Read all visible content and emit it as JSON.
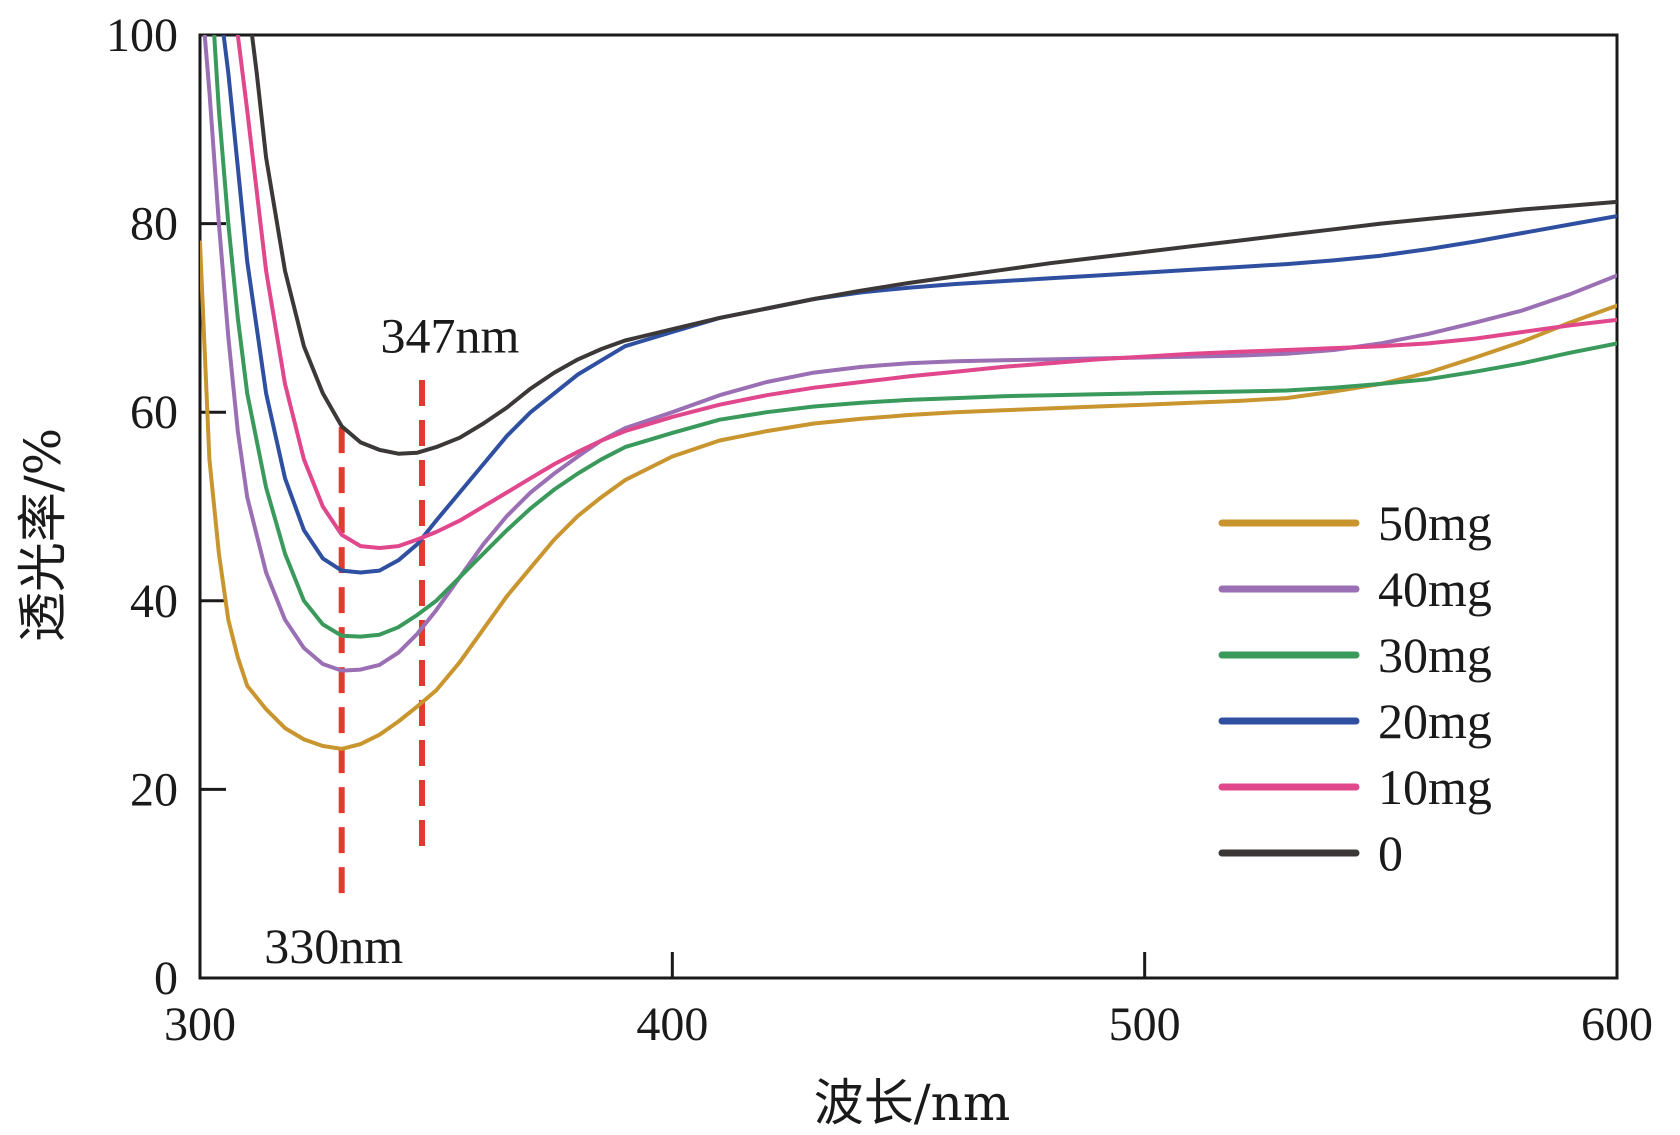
{
  "chart_data": {
    "type": "line",
    "title": "",
    "xlabel": "波长/nm",
    "ylabel": "透光率/%",
    "xlim": [
      300,
      600
    ],
    "ylim": [
      0,
      100
    ],
    "x_ticks": [
      300,
      400,
      500,
      600
    ],
    "y_ticks": [
      0,
      20,
      40,
      60,
      80,
      100
    ],
    "x_tick_labels": [
      "300",
      "400",
      "500",
      "600"
    ],
    "y_tick_labels": [
      "0",
      "20",
      "40",
      "60",
      "80",
      "100"
    ],
    "grid": false,
    "legend_position": "bottom-right",
    "series": [
      {
        "name": "50mg",
        "color": "#C9952E",
        "points": [
          [
            300,
            78
          ],
          [
            302,
            55
          ],
          [
            304,
            45
          ],
          [
            306,
            38
          ],
          [
            308,
            34
          ],
          [
            310,
            31
          ],
          [
            314,
            28.5
          ],
          [
            318,
            26.5
          ],
          [
            322,
            25.3
          ],
          [
            326,
            24.6
          ],
          [
            330,
            24.3
          ],
          [
            334,
            24.8
          ],
          [
            338,
            25.8
          ],
          [
            342,
            27.2
          ],
          [
            346,
            28.8
          ],
          [
            350,
            30.5
          ],
          [
            355,
            33.5
          ],
          [
            360,
            37
          ],
          [
            365,
            40.5
          ],
          [
            370,
            43.5
          ],
          [
            375,
            46.5
          ],
          [
            380,
            49
          ],
          [
            385,
            51
          ],
          [
            390,
            52.8
          ],
          [
            400,
            55.3
          ],
          [
            410,
            57
          ],
          [
            420,
            58
          ],
          [
            430,
            58.8
          ],
          [
            440,
            59.3
          ],
          [
            450,
            59.7
          ],
          [
            460,
            60
          ],
          [
            470,
            60.2
          ],
          [
            480,
            60.4
          ],
          [
            490,
            60.6
          ],
          [
            500,
            60.8
          ],
          [
            510,
            61
          ],
          [
            520,
            61.2
          ],
          [
            530,
            61.5
          ],
          [
            540,
            62.2
          ],
          [
            550,
            63
          ],
          [
            560,
            64.2
          ],
          [
            570,
            65.8
          ],
          [
            580,
            67.5
          ],
          [
            590,
            69.5
          ],
          [
            600,
            71.3
          ]
        ]
      },
      {
        "name": "40mg",
        "color": "#9A6FB3",
        "points": [
          [
            301,
            100
          ],
          [
            302,
            94
          ],
          [
            304,
            80
          ],
          [
            306,
            68
          ],
          [
            308,
            58
          ],
          [
            310,
            51
          ],
          [
            314,
            43
          ],
          [
            318,
            38
          ],
          [
            322,
            35
          ],
          [
            326,
            33.3
          ],
          [
            330,
            32.6
          ],
          [
            334,
            32.7
          ],
          [
            338,
            33.2
          ],
          [
            342,
            34.5
          ],
          [
            346,
            36.5
          ],
          [
            350,
            39
          ],
          [
            355,
            42.5
          ],
          [
            360,
            46
          ],
          [
            365,
            49
          ],
          [
            370,
            51.5
          ],
          [
            375,
            53.5
          ],
          [
            380,
            55.3
          ],
          [
            385,
            57
          ],
          [
            390,
            58.3
          ],
          [
            400,
            60
          ],
          [
            410,
            61.8
          ],
          [
            420,
            63.2
          ],
          [
            430,
            64.2
          ],
          [
            440,
            64.8
          ],
          [
            450,
            65.2
          ],
          [
            460,
            65.4
          ],
          [
            470,
            65.5
          ],
          [
            480,
            65.6
          ],
          [
            490,
            65.7
          ],
          [
            500,
            65.8
          ],
          [
            510,
            65.9
          ],
          [
            520,
            66
          ],
          [
            530,
            66.2
          ],
          [
            540,
            66.6
          ],
          [
            550,
            67.3
          ],
          [
            560,
            68.3
          ],
          [
            570,
            69.5
          ],
          [
            580,
            70.8
          ],
          [
            590,
            72.5
          ],
          [
            600,
            74.5
          ]
        ]
      },
      {
        "name": "30mg",
        "color": "#3A9A5C",
        "points": [
          [
            303,
            100
          ],
          [
            304,
            92
          ],
          [
            306,
            80
          ],
          [
            308,
            70
          ],
          [
            310,
            62
          ],
          [
            314,
            52
          ],
          [
            318,
            45
          ],
          [
            322,
            40
          ],
          [
            326,
            37.5
          ],
          [
            330,
            36.3
          ],
          [
            334,
            36.2
          ],
          [
            338,
            36.4
          ],
          [
            342,
            37.2
          ],
          [
            346,
            38.5
          ],
          [
            350,
            40
          ],
          [
            355,
            42.5
          ],
          [
            360,
            45
          ],
          [
            365,
            47.5
          ],
          [
            370,
            49.8
          ],
          [
            375,
            51.8
          ],
          [
            380,
            53.5
          ],
          [
            385,
            55
          ],
          [
            390,
            56.3
          ],
          [
            400,
            57.8
          ],
          [
            410,
            59.2
          ],
          [
            420,
            60
          ],
          [
            430,
            60.6
          ],
          [
            440,
            61
          ],
          [
            450,
            61.3
          ],
          [
            460,
            61.5
          ],
          [
            470,
            61.7
          ],
          [
            480,
            61.8
          ],
          [
            490,
            61.9
          ],
          [
            500,
            62
          ],
          [
            510,
            62.1
          ],
          [
            520,
            62.2
          ],
          [
            530,
            62.3
          ],
          [
            540,
            62.6
          ],
          [
            550,
            63
          ],
          [
            560,
            63.5
          ],
          [
            570,
            64.3
          ],
          [
            580,
            65.2
          ],
          [
            590,
            66.3
          ],
          [
            600,
            67.3
          ]
        ]
      },
      {
        "name": "20mg",
        "color": "#2F4FA0",
        "points": [
          [
            305,
            100
          ],
          [
            306,
            96
          ],
          [
            308,
            86
          ],
          [
            310,
            76
          ],
          [
            314,
            62
          ],
          [
            318,
            53
          ],
          [
            322,
            47.5
          ],
          [
            326,
            44.5
          ],
          [
            330,
            43.2
          ],
          [
            334,
            43
          ],
          [
            338,
            43.2
          ],
          [
            342,
            44.3
          ],
          [
            346,
            46
          ],
          [
            350,
            48.5
          ],
          [
            355,
            51.5
          ],
          [
            360,
            54.5
          ],
          [
            365,
            57.5
          ],
          [
            370,
            60
          ],
          [
            375,
            62
          ],
          [
            380,
            64
          ],
          [
            385,
            65.5
          ],
          [
            390,
            67
          ],
          [
            400,
            68.5
          ],
          [
            410,
            70
          ],
          [
            420,
            71
          ],
          [
            430,
            72
          ],
          [
            440,
            72.7
          ],
          [
            450,
            73.2
          ],
          [
            460,
            73.6
          ],
          [
            470,
            73.9
          ],
          [
            480,
            74.2
          ],
          [
            490,
            74.5
          ],
          [
            500,
            74.8
          ],
          [
            510,
            75.1
          ],
          [
            520,
            75.4
          ],
          [
            530,
            75.7
          ],
          [
            540,
            76.1
          ],
          [
            550,
            76.6
          ],
          [
            560,
            77.3
          ],
          [
            570,
            78.1
          ],
          [
            580,
            79
          ],
          [
            590,
            79.9
          ],
          [
            600,
            80.8
          ]
        ]
      },
      {
        "name": "10mg",
        "color": "#E0478C",
        "points": [
          [
            308,
            100
          ],
          [
            310,
            92
          ],
          [
            314,
            75
          ],
          [
            318,
            63
          ],
          [
            322,
            55
          ],
          [
            326,
            50
          ],
          [
            330,
            47
          ],
          [
            334,
            45.8
          ],
          [
            338,
            45.6
          ],
          [
            342,
            45.8
          ],
          [
            346,
            46.5
          ],
          [
            350,
            47.3
          ],
          [
            355,
            48.5
          ],
          [
            360,
            50
          ],
          [
            365,
            51.5
          ],
          [
            370,
            53
          ],
          [
            375,
            54.5
          ],
          [
            380,
            55.8
          ],
          [
            385,
            57
          ],
          [
            390,
            58
          ],
          [
            400,
            59.5
          ],
          [
            410,
            60.8
          ],
          [
            420,
            61.8
          ],
          [
            430,
            62.6
          ],
          [
            440,
            63.2
          ],
          [
            450,
            63.8
          ],
          [
            460,
            64.3
          ],
          [
            470,
            64.8
          ],
          [
            480,
            65.2
          ],
          [
            490,
            65.6
          ],
          [
            500,
            65.9
          ],
          [
            510,
            66.2
          ],
          [
            520,
            66.4
          ],
          [
            530,
            66.6
          ],
          [
            540,
            66.8
          ],
          [
            550,
            67
          ],
          [
            560,
            67.3
          ],
          [
            570,
            67.8
          ],
          [
            580,
            68.5
          ],
          [
            590,
            69.2
          ],
          [
            600,
            69.8
          ]
        ]
      },
      {
        "name": "0",
        "color": "#3D3838",
        "points": [
          [
            311,
            100
          ],
          [
            312,
            96
          ],
          [
            314,
            87
          ],
          [
            318,
            75
          ],
          [
            322,
            67
          ],
          [
            326,
            62
          ],
          [
            330,
            58.5
          ],
          [
            334,
            56.8
          ],
          [
            338,
            56
          ],
          [
            342,
            55.6
          ],
          [
            346,
            55.7
          ],
          [
            350,
            56.3
          ],
          [
            355,
            57.3
          ],
          [
            360,
            58.8
          ],
          [
            365,
            60.5
          ],
          [
            370,
            62.5
          ],
          [
            375,
            64.2
          ],
          [
            380,
            65.6
          ],
          [
            385,
            66.7
          ],
          [
            390,
            67.6
          ],
          [
            400,
            68.8
          ],
          [
            410,
            70
          ],
          [
            420,
            71
          ],
          [
            430,
            72
          ],
          [
            440,
            72.9
          ],
          [
            450,
            73.7
          ],
          [
            460,
            74.4
          ],
          [
            470,
            75.1
          ],
          [
            480,
            75.8
          ],
          [
            490,
            76.4
          ],
          [
            500,
            77
          ],
          [
            510,
            77.6
          ],
          [
            520,
            78.2
          ],
          [
            530,
            78.8
          ],
          [
            540,
            79.4
          ],
          [
            550,
            80
          ],
          [
            560,
            80.5
          ],
          [
            570,
            81
          ],
          [
            580,
            81.5
          ],
          [
            590,
            81.9
          ],
          [
            600,
            82.3
          ]
        ]
      }
    ],
    "annotations": [
      {
        "label": "347nm",
        "x": 347,
        "y_from": 14,
        "y_to": 64,
        "color": "#E23B2E"
      },
      {
        "label": "330nm",
        "x": 330,
        "y_from": 9,
        "y_to": 59,
        "color": "#E23B2E"
      }
    ]
  }
}
